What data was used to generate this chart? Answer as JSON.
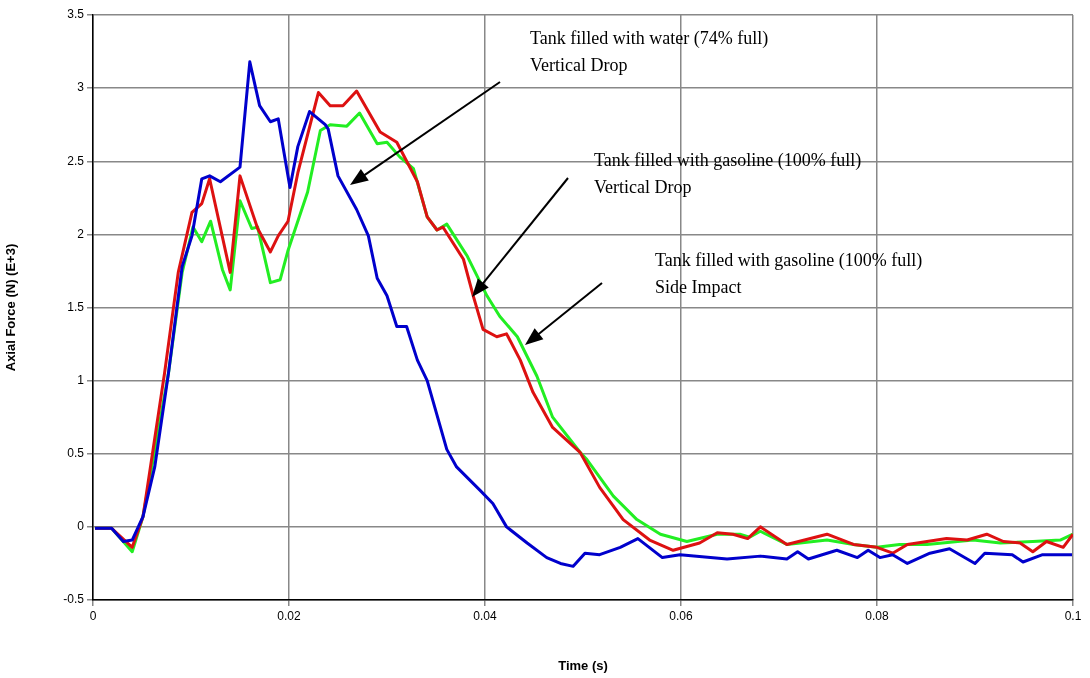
{
  "chart_data": {
    "type": "line",
    "xlabel": "Time (s)",
    "ylabel": "Axial Force (N) (E+3)",
    "xlim": [
      0,
      0.1
    ],
    "xticks": [
      0,
      0.02,
      0.04,
      0.06,
      0.08,
      0.1
    ],
    "ylim": [
      -0.5,
      3.5
    ],
    "yticks": [
      -0.5,
      0,
      0.5,
      1,
      1.5,
      2,
      2.5,
      3,
      3.5
    ],
    "grid": true,
    "legend": false,
    "marker": "none",
    "line_style": "solid",
    "series": [
      {
        "color": "#0000cc",
        "x": [
          0.0002,
          0.0019,
          0.0031,
          0.004,
          0.0051,
          0.0063,
          0.0077,
          0.0091,
          0.0101,
          0.0111,
          0.0119,
          0.013,
          0.015,
          0.016,
          0.017,
          0.0181,
          0.0189,
          0.0201,
          0.0209,
          0.0221,
          0.0237,
          0.024,
          0.025,
          0.0269,
          0.0281,
          0.029,
          0.03,
          0.031,
          0.032,
          0.0331,
          0.0341,
          0.0361,
          0.0371,
          0.0395,
          0.0408,
          0.0422,
          0.0443,
          0.0463,
          0.0477,
          0.049,
          0.0502,
          0.0517,
          0.0538,
          0.0556,
          0.0581,
          0.0599,
          0.0647,
          0.0681,
          0.0708,
          0.0719,
          0.073,
          0.0759,
          0.078,
          0.0791,
          0.0803,
          0.0816,
          0.0831,
          0.0854,
          0.0874,
          0.09,
          0.091,
          0.0938,
          0.0949,
          0.0969,
          0.0999
        ],
        "values": [
          -0.01,
          -0.01,
          -0.1,
          -0.09,
          0.07,
          0.41,
          1.05,
          1.78,
          1.99,
          2.38,
          2.4,
          2.36,
          2.46,
          3.18,
          2.88,
          2.77,
          2.79,
          2.32,
          2.6,
          2.84,
          2.75,
          2.72,
          2.4,
          2.17,
          1.99,
          1.7,
          1.58,
          1.37,
          1.37,
          1.14,
          1,
          0.53,
          0.41,
          0.25,
          0.16,
          0,
          -0.11,
          -0.21,
          -0.25,
          -0.27,
          -0.18,
          -0.19,
          -0.14,
          -0.08,
          -0.21,
          -0.19,
          -0.22,
          -0.2,
          -0.22,
          -0.17,
          -0.22,
          -0.16,
          -0.21,
          -0.16,
          -0.21,
          -0.19,
          -0.25,
          -0.18,
          -0.15,
          -0.25,
          -0.18,
          -0.19,
          -0.24,
          -0.19,
          -0.19
        ]
      },
      {
        "color": "#dd1111",
        "x": [
          0.0002,
          0.0019,
          0.004,
          0.0051,
          0.0073,
          0.0087,
          0.0101,
          0.0111,
          0.0119,
          0.014,
          0.015,
          0.0168,
          0.0181,
          0.0189,
          0.0199,
          0.0209,
          0.023,
          0.0242,
          0.0255,
          0.0269,
          0.0293,
          0.031,
          0.0331,
          0.0341,
          0.0351,
          0.0357,
          0.0378,
          0.0388,
          0.0398,
          0.0412,
          0.0422,
          0.0436,
          0.0449,
          0.0469,
          0.0497,
          0.0517,
          0.0541,
          0.0568,
          0.0592,
          0.0619,
          0.0637,
          0.0653,
          0.0668,
          0.0681,
          0.0708,
          0.0749,
          0.0776,
          0.08,
          0.0816,
          0.0831,
          0.0851,
          0.0871,
          0.0892,
          0.0912,
          0.0929,
          0.0946,
          0.0959,
          0.0973,
          0.099,
          0.1
        ],
        "values": [
          -0.01,
          -0.01,
          -0.14,
          0.07,
          1.05,
          1.74,
          2.15,
          2.21,
          2.38,
          1.74,
          2.4,
          2.04,
          1.88,
          1.99,
          2.09,
          2.42,
          2.97,
          2.88,
          2.88,
          2.98,
          2.7,
          2.63,
          2.36,
          2.12,
          2.03,
          2.05,
          1.83,
          1.58,
          1.35,
          1.3,
          1.32,
          1.14,
          0.92,
          0.68,
          0.51,
          0.27,
          0.05,
          -0.09,
          -0.16,
          -0.11,
          -0.04,
          -0.05,
          -0.08,
          0,
          -0.12,
          -0.05,
          -0.12,
          -0.14,
          -0.18,
          -0.12,
          -0.1,
          -0.08,
          -0.09,
          -0.05,
          -0.1,
          -0.11,
          -0.17,
          -0.1,
          -0.14,
          -0.05
        ]
      },
      {
        "color": "#22ee22",
        "x": [
          0.0002,
          0.0019,
          0.004,
          0.0051,
          0.0077,
          0.0091,
          0.0102,
          0.0111,
          0.012,
          0.0132,
          0.014,
          0.015,
          0.0162,
          0.0168,
          0.0181,
          0.0191,
          0.0199,
          0.0219,
          0.0232,
          0.0242,
          0.0259,
          0.0272,
          0.029,
          0.03,
          0.0313,
          0.0327,
          0.0341,
          0.0351,
          0.0361,
          0.0382,
          0.0402,
          0.0415,
          0.0433,
          0.0453,
          0.0469,
          0.0497,
          0.0504,
          0.0531,
          0.0555,
          0.0579,
          0.0606,
          0.0637,
          0.066,
          0.067,
          0.0681,
          0.0708,
          0.0749,
          0.0776,
          0.08,
          0.0823,
          0.0851,
          0.0898,
          0.0926,
          0.0959,
          0.0987,
          0.1
        ],
        "values": [
          -0.01,
          -0.01,
          -0.17,
          0.07,
          1.05,
          1.74,
          2.05,
          1.95,
          2.09,
          1.76,
          1.62,
          2.23,
          2.04,
          2.05,
          1.67,
          1.69,
          1.89,
          2.29,
          2.71,
          2.75,
          2.74,
          2.83,
          2.62,
          2.63,
          2.53,
          2.45,
          2.12,
          2.03,
          2.07,
          1.85,
          1.58,
          1.44,
          1.3,
          1.03,
          0.75,
          0.51,
          0.46,
          0.21,
          0.05,
          -0.05,
          -0.1,
          -0.05,
          -0.05,
          -0.07,
          -0.03,
          -0.12,
          -0.09,
          -0.12,
          -0.14,
          -0.12,
          -0.12,
          -0.09,
          -0.11,
          -0.1,
          -0.09,
          -0.05
        ]
      }
    ],
    "annotations": [
      "Tank filled with water (74% full)\nVertical Drop",
      "Tank filled with gasoline (100% full)\nVertical Drop",
      "Tank filled with gasoline (100% full)\nSide Impact"
    ]
  }
}
